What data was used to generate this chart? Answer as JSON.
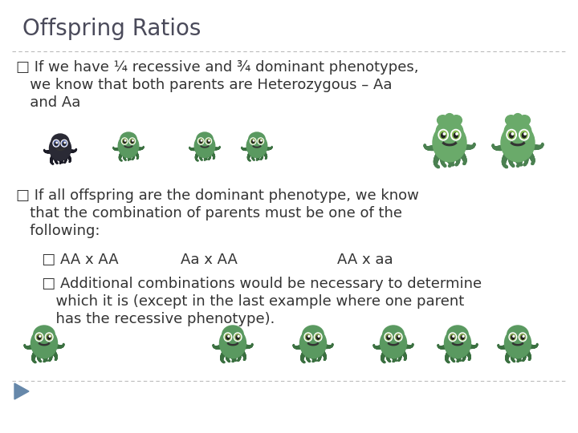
{
  "background_color": "#ffffff",
  "title": "Offspring Ratios",
  "title_fontsize": 20,
  "title_color": "#4a4a5a",
  "divider_color": "#bbbbbb",
  "text_color": "#333333",
  "bullet1_line1": "□ If we have ¼ recessive and ¾ dominant phenotypes,",
  "bullet1_line2": "   we know that both parents are Heterozygous – Aa",
  "bullet1_line3": "   and Aa",
  "bullet2_line1": "□ If all offspring are the dominant phenotype, we know",
  "bullet2_line2": "   that the combination of parents must be one of the",
  "bullet2_line3": "   following:",
  "sub1_text": "   □ AA x AA",
  "sub2_text": "Aa x AA",
  "sub3_text": "AA x aa",
  "add_line1": "   □ Additional combinations would be necessary to determine",
  "add_line2": "      which it is (except in the last example where one parent",
  "add_line3": "      has the recessive phenotype).",
  "body_fontsize": 13,
  "sub_fontsize": 13,
  "octo_dark_color": "#2a2a35",
  "octo_dark_tentacle": "#1a1a25",
  "octo_green_color": "#5a9960",
  "octo_green_dark": "#3a7040",
  "octo_large_color": "#6aaa6a",
  "octo_large_dark": "#4a8050",
  "eye_white": "#ffffff",
  "eye_dark": "#333333",
  "eye_blue": "#6699cc",
  "triangle_color": "#6688aa"
}
